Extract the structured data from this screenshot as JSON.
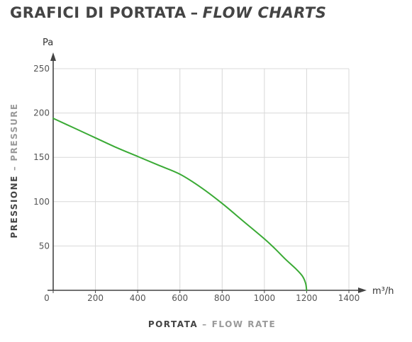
{
  "title": {
    "it": "GRAFICI DI PORTATA",
    "separator": "–",
    "en": "FLOW CHARTS"
  },
  "colors": {
    "title": "#444444",
    "curve": "#3aaa35",
    "grid": "#d8d8d8",
    "axis": "#444444",
    "axis_title_primary": "#444444",
    "axis_title_secondary": "#9a9a9a"
  },
  "chart_data": {
    "type": "line",
    "x_unit": "m³/h",
    "y_unit": "Pa",
    "xlabel_primary": "PORTATA",
    "xlabel_separator": "–",
    "xlabel_secondary": "FLOW RATE",
    "ylabel_primary": "PRESSIONE",
    "ylabel_separator": "–",
    "ylabel_secondary": "PRESSURE",
    "xlim": [
      0,
      1400
    ],
    "ylim": [
      0,
      250
    ],
    "xticks": [
      0,
      200,
      400,
      600,
      800,
      1000,
      1200,
      1400
    ],
    "yticks": [
      50,
      100,
      150,
      200,
      250
    ],
    "grid": true,
    "series": [
      {
        "x": [
          0,
          100,
          200,
          300,
          400,
          500,
          600,
          700,
          800,
          900,
          1000,
          1050,
          1100,
          1150,
          1180,
          1195,
          1200
        ],
        "y": [
          194,
          183,
          172,
          161,
          151,
          141,
          131,
          116,
          98,
          78,
          58,
          47,
          35,
          24,
          16,
          8,
          0
        ]
      }
    ]
  }
}
